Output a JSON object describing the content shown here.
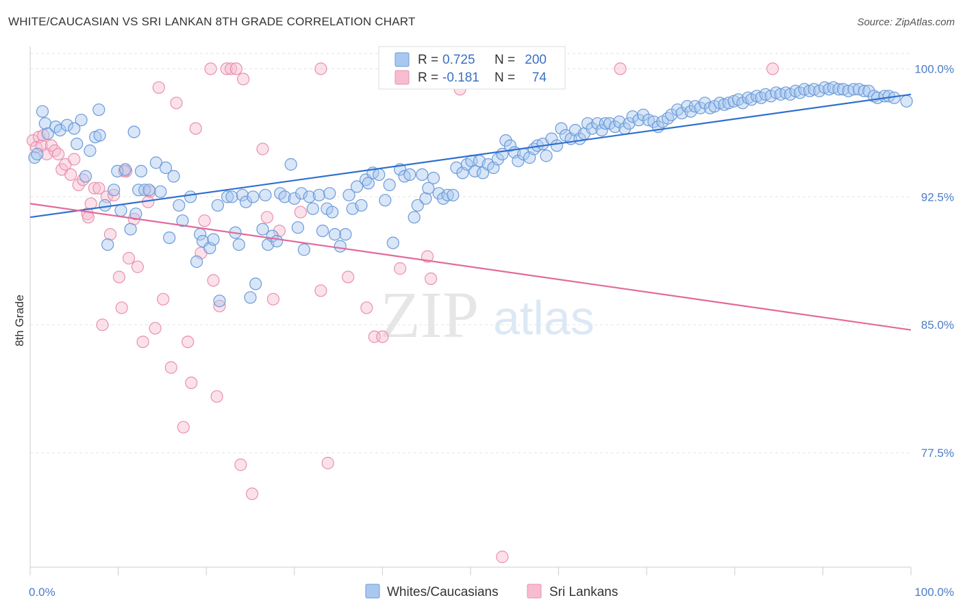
{
  "header": {
    "title": "WHITE/CAUCASIAN VS SRI LANKAN 8TH GRADE CORRELATION CHART",
    "source": "Source: ZipAtlas.com"
  },
  "watermark": {
    "zip": "ZIP",
    "atlas": "atlas"
  },
  "colors": {
    "blue_fill": "#a9c8f0",
    "blue_stroke": "#6b9ad8",
    "blue_line": "#2f6fce",
    "pink_fill": "#f7bcd0",
    "pink_stroke": "#e890ad",
    "pink_line": "#e3689a",
    "grid": "#e3e3e3",
    "axis_text": "#4a7cc7"
  },
  "legend": {
    "rows": [
      {
        "r_label": "R =",
        "r_value": "0.725",
        "n_label": "N =",
        "n_value": "200"
      },
      {
        "r_label": "R =",
        "r_value": "-0.181",
        "n_label": "N =",
        "n_value": "74"
      }
    ]
  },
  "bottom_legend": [
    "Whites/Caucasians",
    "Sri Lankans"
  ],
  "chart_data": {
    "type": "scatter",
    "title": "WHITE/CAUCASIAN VS SRI LANKAN 8TH GRADE CORRELATION CHART",
    "xlabel": "",
    "ylabel": "8th Grade",
    "xlim": [
      0,
      100
    ],
    "ylim": [
      70.8,
      100.9
    ],
    "x_tick_labels": [
      "0.0%",
      "100.0%"
    ],
    "y_ticks": [
      77.5,
      85.0,
      92.5,
      100.0
    ],
    "y_tick_labels": [
      "77.5%",
      "85.0%",
      "92.5%",
      "100.0%"
    ],
    "grid": true,
    "legend_position": "top-center",
    "series": [
      {
        "name": "Whites/Caucasians",
        "r": 0.725,
        "n": 200,
        "trend": {
          "x": [
            0,
            100
          ],
          "y": [
            91.3,
            98.5
          ]
        },
        "points": [
          [
            0.5,
            94.8
          ],
          [
            0.8,
            95.0
          ],
          [
            1.4,
            97.5
          ],
          [
            1.7,
            96.8
          ],
          [
            2.0,
            96.2
          ],
          [
            2.9,
            96.6
          ],
          [
            3.4,
            96.4
          ],
          [
            4.2,
            96.7
          ],
          [
            5.3,
            95.6
          ],
          [
            5.8,
            97.0
          ],
          [
            6.3,
            93.7
          ],
          [
            6.8,
            95.2
          ],
          [
            7.4,
            96.0
          ],
          [
            7.9,
            96.1
          ],
          [
            8.5,
            92.0
          ],
          [
            8.8,
            89.7
          ],
          [
            9.5,
            92.9
          ],
          [
            9.9,
            94.0
          ],
          [
            10.3,
            91.7
          ],
          [
            10.8,
            94.1
          ],
          [
            11.4,
            90.6
          ],
          [
            11.8,
            96.3
          ],
          [
            12.0,
            91.5
          ],
          [
            12.3,
            92.9
          ],
          [
            13.0,
            92.9
          ],
          [
            13.5,
            92.9
          ],
          [
            14.3,
            94.5
          ],
          [
            14.8,
            92.8
          ],
          [
            15.4,
            94.2
          ],
          [
            15.8,
            90.1
          ],
          [
            16.3,
            93.7
          ],
          [
            16.9,
            92.0
          ],
          [
            17.3,
            91.1
          ],
          [
            18.2,
            92.5
          ],
          [
            18.9,
            88.7
          ],
          [
            19.3,
            90.3
          ],
          [
            19.6,
            89.9
          ],
          [
            20.4,
            89.5
          ],
          [
            20.8,
            90.0
          ],
          [
            21.3,
            92.0
          ],
          [
            21.5,
            86.4
          ],
          [
            22.4,
            92.5
          ],
          [
            22.9,
            92.5
          ],
          [
            23.3,
            90.4
          ],
          [
            23.7,
            89.7
          ],
          [
            24.1,
            92.6
          ],
          [
            24.5,
            92.2
          ],
          [
            25.0,
            86.6
          ],
          [
            25.3,
            92.5
          ],
          [
            25.6,
            87.4
          ],
          [
            26.7,
            92.6
          ],
          [
            27.0,
            89.7
          ],
          [
            27.5,
            90.2
          ],
          [
            28.0,
            89.9
          ],
          [
            28.4,
            92.7
          ],
          [
            28.9,
            92.5
          ],
          [
            29.6,
            94.4
          ],
          [
            30.0,
            92.4
          ],
          [
            30.4,
            90.7
          ],
          [
            30.8,
            92.7
          ],
          [
            31.1,
            89.4
          ],
          [
            31.7,
            92.5
          ],
          [
            32.1,
            91.8
          ],
          [
            32.8,
            92.6
          ],
          [
            33.2,
            90.5
          ],
          [
            33.7,
            91.8
          ],
          [
            34.3,
            91.6
          ],
          [
            34.6,
            90.3
          ],
          [
            35.2,
            89.6
          ],
          [
            35.8,
            90.3
          ],
          [
            36.2,
            92.6
          ],
          [
            36.6,
            91.8
          ],
          [
            37.1,
            93.1
          ],
          [
            37.6,
            92.0
          ],
          [
            38.1,
            93.5
          ],
          [
            38.4,
            93.3
          ],
          [
            38.9,
            93.9
          ],
          [
            39.6,
            93.8
          ],
          [
            40.3,
            92.3
          ],
          [
            40.8,
            93.2
          ],
          [
            41.2,
            89.8
          ],
          [
            42.0,
            94.1
          ],
          [
            42.5,
            93.7
          ],
          [
            43.1,
            93.8
          ],
          [
            43.6,
            91.3
          ],
          [
            44.0,
            92.0
          ],
          [
            44.5,
            93.8
          ],
          [
            44.9,
            92.4
          ],
          [
            45.2,
            93.0
          ],
          [
            45.8,
            93.6
          ],
          [
            46.4,
            92.7
          ],
          [
            46.9,
            92.4
          ],
          [
            47.4,
            92.6
          ],
          [
            48.0,
            92.6
          ],
          [
            48.4,
            94.2
          ],
          [
            49.1,
            93.9
          ],
          [
            49.6,
            94.4
          ],
          [
            50.1,
            94.6
          ],
          [
            50.5,
            94.0
          ],
          [
            51.0,
            94.6
          ],
          [
            51.4,
            93.9
          ],
          [
            52.0,
            94.4
          ],
          [
            52.6,
            94.2
          ],
          [
            53.1,
            94.7
          ],
          [
            53.6,
            95.0
          ],
          [
            54.0,
            95.8
          ],
          [
            54.5,
            95.5
          ],
          [
            55.0,
            95.1
          ],
          [
            55.4,
            94.6
          ],
          [
            56.0,
            95.0
          ],
          [
            56.7,
            94.8
          ],
          [
            57.2,
            95.3
          ],
          [
            57.6,
            95.5
          ],
          [
            58.2,
            95.6
          ],
          [
            58.6,
            94.9
          ],
          [
            59.2,
            95.9
          ],
          [
            59.8,
            95.5
          ],
          [
            60.3,
            96.5
          ],
          [
            60.8,
            96.1
          ],
          [
            61.4,
            95.9
          ],
          [
            61.9,
            96.4
          ],
          [
            62.4,
            95.9
          ],
          [
            62.9,
            96.2
          ],
          [
            63.3,
            96.8
          ],
          [
            63.8,
            96.5
          ],
          [
            64.4,
            96.8
          ],
          [
            64.9,
            96.4
          ],
          [
            65.3,
            96.8
          ],
          [
            65.8,
            96.8
          ],
          [
            66.4,
            96.6
          ],
          [
            66.9,
            96.9
          ],
          [
            67.5,
            96.5
          ],
          [
            68.0,
            96.8
          ],
          [
            68.4,
            97.2
          ],
          [
            69.1,
            97.0
          ],
          [
            69.6,
            97.3
          ],
          [
            70.2,
            97.0
          ],
          [
            70.8,
            96.9
          ],
          [
            71.3,
            96.6
          ],
          [
            71.8,
            96.9
          ],
          [
            72.4,
            97.1
          ],
          [
            72.8,
            97.3
          ],
          [
            73.5,
            97.6
          ],
          [
            74.0,
            97.4
          ],
          [
            74.6,
            97.8
          ],
          [
            75.0,
            97.5
          ],
          [
            75.5,
            97.8
          ],
          [
            76.1,
            97.7
          ],
          [
            76.6,
            98.0
          ],
          [
            77.2,
            97.7
          ],
          [
            77.7,
            97.8
          ],
          [
            78.3,
            98.0
          ],
          [
            78.8,
            97.9
          ],
          [
            79.3,
            98.0
          ],
          [
            79.9,
            98.1
          ],
          [
            80.4,
            98.2
          ],
          [
            80.9,
            98.0
          ],
          [
            81.5,
            98.3
          ],
          [
            81.9,
            98.2
          ],
          [
            82.5,
            98.4
          ],
          [
            83.0,
            98.3
          ],
          [
            83.5,
            98.5
          ],
          [
            84.1,
            98.4
          ],
          [
            84.7,
            98.6
          ],
          [
            85.2,
            98.5
          ],
          [
            85.8,
            98.6
          ],
          [
            86.3,
            98.5
          ],
          [
            86.9,
            98.7
          ],
          [
            87.4,
            98.6
          ],
          [
            87.9,
            98.8
          ],
          [
            88.5,
            98.7
          ],
          [
            89.0,
            98.8
          ],
          [
            89.6,
            98.7
          ],
          [
            90.2,
            98.9
          ],
          [
            90.7,
            98.8
          ],
          [
            91.2,
            98.9
          ],
          [
            91.8,
            98.8
          ],
          [
            92.3,
            98.8
          ],
          [
            92.9,
            98.7
          ],
          [
            93.5,
            98.8
          ],
          [
            94.1,
            98.8
          ],
          [
            94.7,
            98.7
          ],
          [
            95.2,
            98.7
          ],
          [
            95.8,
            98.4
          ],
          [
            96.2,
            98.3
          ],
          [
            97.0,
            98.4
          ],
          [
            97.5,
            98.4
          ],
          [
            98.1,
            98.3
          ],
          [
            99.5,
            98.1
          ],
          [
            5.0,
            96.5
          ],
          [
            7.8,
            97.6
          ],
          [
            12.6,
            94.0
          ],
          [
            26.4,
            90.6
          ],
          [
            34.0,
            92.7
          ]
        ]
      },
      {
        "name": "Sri Lankans",
        "r": -0.181,
        "n": 74,
        "trend": {
          "x": [
            0,
            100
          ],
          "y": [
            92.1,
            84.7
          ]
        },
        "points": [
          [
            0.3,
            95.8
          ],
          [
            0.7,
            95.4
          ],
          [
            1.0,
            96.0
          ],
          [
            1.3,
            95.5
          ],
          [
            1.5,
            96.1
          ],
          [
            1.9,
            95.0
          ],
          [
            2.4,
            95.5
          ],
          [
            2.8,
            95.2
          ],
          [
            3.2,
            95.0
          ],
          [
            3.6,
            94.1
          ],
          [
            4.0,
            94.4
          ],
          [
            4.6,
            93.8
          ],
          [
            5.0,
            94.7
          ],
          [
            5.5,
            93.2
          ],
          [
            6.0,
            93.5
          ],
          [
            6.5,
            91.5
          ],
          [
            6.9,
            92.1
          ],
          [
            7.3,
            93.0
          ],
          [
            7.8,
            93.0
          ],
          [
            8.2,
            85.0
          ],
          [
            8.7,
            92.5
          ],
          [
            9.1,
            90.3
          ],
          [
            9.5,
            92.6
          ],
          [
            10.1,
            87.8
          ],
          [
            10.4,
            86.0
          ],
          [
            10.9,
            94.0
          ],
          [
            11.2,
            88.9
          ],
          [
            11.8,
            91.2
          ],
          [
            12.2,
            88.4
          ],
          [
            12.8,
            84.0
          ],
          [
            13.6,
            92.8
          ],
          [
            14.2,
            84.8
          ],
          [
            14.6,
            98.9
          ],
          [
            15.1,
            86.5
          ],
          [
            16.0,
            82.5
          ],
          [
            16.6,
            98.0
          ],
          [
            17.4,
            79.0
          ],
          [
            17.9,
            84.0
          ],
          [
            18.3,
            81.6
          ],
          [
            18.8,
            96.5
          ],
          [
            19.4,
            89.2
          ],
          [
            19.8,
            91.1
          ],
          [
            20.5,
            100.0
          ],
          [
            20.8,
            87.6
          ],
          [
            21.2,
            80.8
          ],
          [
            21.5,
            86.1
          ],
          [
            22.3,
            100.0
          ],
          [
            22.8,
            100.0
          ],
          [
            23.4,
            100.0
          ],
          [
            23.9,
            76.8
          ],
          [
            24.2,
            99.4
          ],
          [
            25.2,
            75.1
          ],
          [
            26.4,
            95.3
          ],
          [
            26.9,
            91.3
          ],
          [
            27.6,
            86.5
          ],
          [
            28.3,
            90.5
          ],
          [
            30.7,
            91.6
          ],
          [
            33.0,
            87.0
          ],
          [
            33.8,
            76.9
          ],
          [
            36.1,
            87.8
          ],
          [
            38.2,
            86.0
          ],
          [
            39.1,
            84.3
          ],
          [
            40.0,
            84.3
          ],
          [
            42.0,
            88.3
          ],
          [
            45.1,
            89.0
          ],
          [
            45.5,
            87.7
          ],
          [
            48.8,
            98.8
          ],
          [
            53.6,
            71.4
          ],
          [
            67.0,
            100.0
          ],
          [
            84.3,
            100.0
          ],
          [
            33.0,
            100.0
          ],
          [
            10.7,
            94.0
          ],
          [
            6.6,
            91.3
          ],
          [
            13.4,
            92.2
          ]
        ]
      }
    ]
  }
}
